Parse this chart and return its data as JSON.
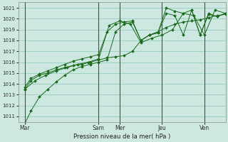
{
  "xlabel": "Pression niveau de la mer( hPa )",
  "bg_color": "#cce8e0",
  "line_color": "#1a6b1a",
  "ylim": [
    1010.5,
    1021.5
  ],
  "yticks": [
    1011,
    1012,
    1013,
    1014,
    1015,
    1016,
    1017,
    1018,
    1019,
    1020,
    1021
  ],
  "day_labels": [
    "Mar",
    "Sam",
    "Mer",
    "Jeu",
    "Ven"
  ],
  "day_positions": [
    0.0,
    3.5,
    4.5,
    6.5,
    8.5
  ],
  "xlim": [
    -0.3,
    9.5
  ],
  "series": [
    {
      "x": [
        0.0,
        0.3,
        0.7,
        1.1,
        1.5,
        1.9,
        2.3,
        2.7,
        3.1,
        3.5,
        3.9,
        4.3,
        4.7,
        5.1,
        5.5,
        5.9,
        6.3,
        6.7,
        7.1,
        7.5,
        7.9,
        8.3,
        8.7,
        9.1,
        9.5
      ],
      "y": [
        1010.3,
        1011.5,
        1012.8,
        1013.5,
        1014.2,
        1014.8,
        1015.3,
        1015.6,
        1015.8,
        1016.0,
        1016.2,
        1018.8,
        1019.5,
        1019.7,
        1018.0,
        1018.5,
        1018.7,
        1020.5,
        1020.3,
        1018.5,
        1020.8,
        1018.5,
        1020.5,
        1020.2,
        1020.5
      ]
    },
    {
      "x": [
        0.0,
        0.3,
        0.7,
        1.1,
        1.5,
        1.9,
        2.3,
        2.7,
        3.1,
        3.5,
        3.9,
        4.3,
        4.7,
        5.1,
        5.5,
        5.9,
        6.3,
        6.7,
        7.1,
        7.5,
        7.9,
        8.3,
        8.7,
        9.1,
        9.5
      ],
      "y": [
        1013.5,
        1014.3,
        1014.8,
        1015.0,
        1015.3,
        1015.5,
        1015.7,
        1015.8,
        1016.0,
        1016.2,
        1016.4,
        1016.5,
        1016.6,
        1017.0,
        1018.0,
        1018.5,
        1018.8,
        1019.2,
        1019.5,
        1019.7,
        1019.8,
        1019.9,
        1020.1,
        1020.3,
        1020.4
      ]
    },
    {
      "x": [
        0.0,
        0.3,
        0.7,
        1.1,
        1.5,
        1.9,
        2.3,
        2.7,
        3.1,
        3.5,
        3.9,
        4.3,
        4.7,
        5.1,
        5.5,
        5.9,
        6.3,
        6.7,
        7.1,
        7.5,
        7.9,
        8.3,
        8.7,
        9.1,
        9.5
      ],
      "y": [
        1013.7,
        1014.5,
        1014.9,
        1015.2,
        1015.5,
        1015.8,
        1016.1,
        1016.3,
        1016.5,
        1016.7,
        1018.8,
        1019.5,
        1019.7,
        1019.8,
        1018.0,
        1018.5,
        1018.7,
        1021.0,
        1020.7,
        1020.5,
        1020.8,
        1018.5,
        1020.4,
        1020.2,
        1020.5
      ]
    },
    {
      "x": [
        0.0,
        0.5,
        1.0,
        1.5,
        2.0,
        2.5,
        3.0,
        3.5,
        4.0,
        4.5,
        5.0,
        5.5,
        6.0,
        6.5,
        7.0,
        7.5,
        8.0,
        8.5,
        9.0,
        9.5
      ],
      "y": [
        1013.5,
        1014.3,
        1014.8,
        1015.2,
        1015.5,
        1015.8,
        1016.0,
        1016.3,
        1019.4,
        1019.8,
        1019.5,
        1017.8,
        1018.2,
        1018.5,
        1019.0,
        1020.5,
        1020.3,
        1018.5,
        1020.8,
        1020.5
      ]
    }
  ],
  "vline_positions": [
    0.0,
    3.5,
    4.5,
    6.5,
    8.5
  ],
  "grid_color": "#88c8b8"
}
